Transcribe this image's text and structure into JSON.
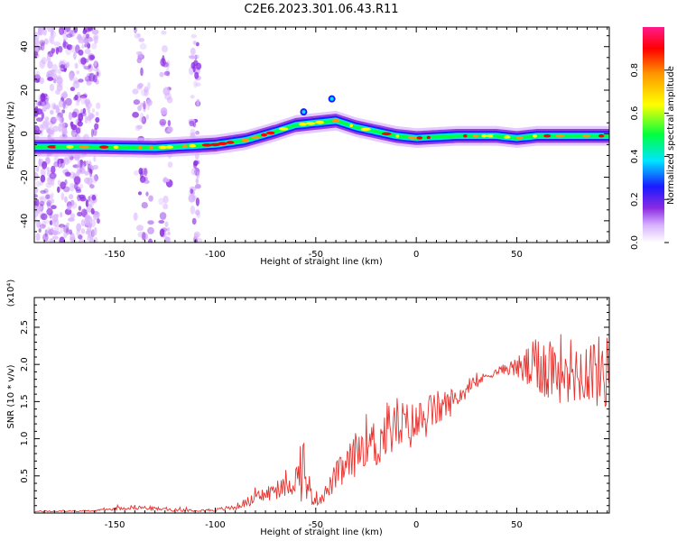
{
  "title": "C2E6.2023.301.06.43.R11",
  "colors": {
    "snr_line": "#e8322e",
    "colormap": [
      "#ffffff",
      "#d9b3ff",
      "#8a2be2",
      "#1a1aff",
      "#00e5ff",
      "#00ff40",
      "#ffff00",
      "#ff9900",
      "#ff0000",
      "#ff1a8c"
    ]
  },
  "chart_data": [
    {
      "type": "heatmap",
      "xlabel": "Height of straight line (km)",
      "ylabel": "Frequency (Hz)",
      "xlim": [
        -190,
        96
      ],
      "ylim": [
        -50,
        49
      ],
      "x_ticks": [
        -150,
        -100,
        -50,
        0,
        50
      ],
      "x_tick_labels": [
        "-150",
        "-100",
        "-50",
        "0",
        "50"
      ],
      "y_ticks": [
        40,
        20,
        0,
        -20,
        -40
      ],
      "y_tick_labels": [
        "40",
        "20",
        "0",
        "-20",
        "-40"
      ],
      "colorbar": {
        "label": "Normalized spectral amplitude",
        "range": [
          0.0,
          1.0
        ],
        "ticks": [
          0.0,
          0.2,
          0.4,
          0.6,
          0.8
        ],
        "tick_labels": [
          "0.0",
          "0.2",
          "0.4",
          "0.6",
          "0.8"
        ]
      },
      "ridge_center_hz": [
        {
          "x": -190,
          "y": -6
        },
        {
          "x": -165,
          "y": -6
        },
        {
          "x": -130,
          "y": -6.5
        },
        {
          "x": -100,
          "y": -5
        },
        {
          "x": -85,
          "y": -3
        },
        {
          "x": -70,
          "y": 1
        },
        {
          "x": -60,
          "y": 4
        },
        {
          "x": -50,
          "y": 5
        },
        {
          "x": -40,
          "y": 6
        },
        {
          "x": -30,
          "y": 3
        },
        {
          "x": -20,
          "y": 1
        },
        {
          "x": -10,
          "y": -1
        },
        {
          "x": 0,
          "y": -2
        },
        {
          "x": 20,
          "y": -1
        },
        {
          "x": 40,
          "y": -1
        },
        {
          "x": 50,
          "y": -2
        },
        {
          "x": 60,
          "y": -1
        },
        {
          "x": 75,
          "y": -1
        },
        {
          "x": 96,
          "y": -1
        }
      ],
      "grid": false
    },
    {
      "type": "line",
      "xlabel": "Height of straight line (km)",
      "ylabel": "SNR (10 * v/v)",
      "y_multiplier": "(x10⁴)",
      "xlim": [
        -190,
        96
      ],
      "ylim": [
        0,
        2.9
      ],
      "x_ticks": [
        -150,
        -100,
        -50,
        0,
        50
      ],
      "x_tick_labels": [
        "-150",
        "-100",
        "-50",
        "0",
        "50"
      ],
      "y_ticks": [
        0.5,
        1.0,
        1.5,
        2.0,
        2.5
      ],
      "y_tick_labels": [
        "0.5",
        "1.0",
        "1.5",
        "2.0",
        "2.5"
      ],
      "series": [
        {
          "x": [
            -190,
            -160,
            -140,
            -120,
            -100,
            -90,
            -80,
            -75,
            -70,
            -65,
            -60,
            -56,
            -52,
            -48,
            -44,
            -40,
            -35,
            -30,
            -25,
            -20,
            -15,
            -10,
            -5,
            0,
            5,
            10,
            15,
            20,
            25,
            30,
            35,
            40,
            45,
            50,
            55,
            60,
            65,
            70,
            75,
            80,
            85,
            90,
            96
          ],
          "y": [
            0.02,
            0.03,
            0.08,
            0.04,
            0.04,
            0.08,
            0.2,
            0.25,
            0.3,
            0.35,
            0.45,
            0.6,
            0.2,
            0.2,
            0.3,
            0.5,
            0.6,
            0.8,
            1.0,
            0.9,
            1.1,
            1.2,
            1.15,
            1.2,
            1.3,
            1.4,
            1.45,
            1.55,
            1.65,
            1.75,
            1.85,
            1.9,
            1.95,
            1.95,
            1.95,
            1.95,
            2.0,
            1.95,
            1.95,
            1.9,
            1.95,
            1.9,
            1.9
          ],
          "noise": [
            0.01,
            0.01,
            0.03,
            0.02,
            0.02,
            0.04,
            0.08,
            0.12,
            0.12,
            0.14,
            0.2,
            0.5,
            0.1,
            0.1,
            0.12,
            0.2,
            0.25,
            0.3,
            0.35,
            0.35,
            0.4,
            0.4,
            0.35,
            0.3,
            0.3,
            0.25,
            0.22,
            0.15,
            0.1,
            0.08,
            0.06,
            0.05,
            0.08,
            0.15,
            0.3,
            0.4,
            0.5,
            0.5,
            0.45,
            0.45,
            0.45,
            0.5,
            0.5
          ]
        }
      ],
      "grid": false
    }
  ]
}
